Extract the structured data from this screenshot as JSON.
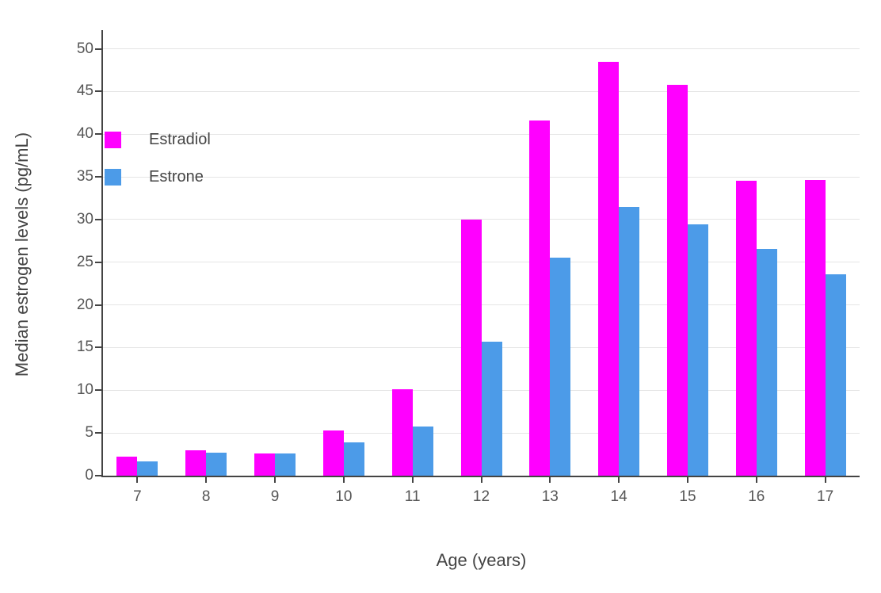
{
  "chart_data": {
    "type": "bar",
    "title": "",
    "xlabel": "Age (years)",
    "ylabel": "Median estrogen levels (pg/mL)",
    "categories": [
      "7",
      "8",
      "9",
      "10",
      "11",
      "12",
      "13",
      "14",
      "15",
      "16",
      "17"
    ],
    "series": [
      {
        "name": "Estradiol",
        "color": "#FF00FF",
        "values": [
          2.2,
          3.0,
          2.6,
          5.3,
          10.1,
          30.0,
          41.6,
          48.5,
          45.8,
          34.5,
          34.6
        ]
      },
      {
        "name": "Estrone",
        "color": "#4C9BE8",
        "values": [
          1.7,
          2.7,
          2.6,
          3.9,
          5.8,
          15.7,
          25.5,
          31.5,
          29.4,
          26.6,
          23.6
        ]
      }
    ],
    "ylim": [
      0,
      52
    ],
    "yticks": [
      0,
      5,
      10,
      15,
      20,
      25,
      30,
      35,
      40,
      45,
      50
    ],
    "grid": true,
    "legend_position": "inside-top-left",
    "axis_color": "#444444",
    "grid_color": "#e5e5e5",
    "tick_label_color": "#555555"
  }
}
